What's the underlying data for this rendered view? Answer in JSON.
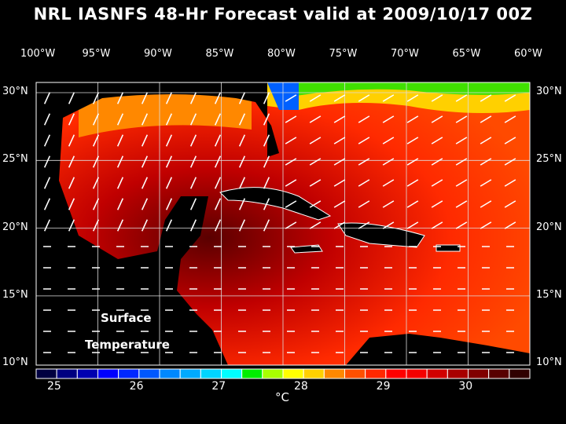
{
  "title": "NRL IASNFS  48-Hr Forecast valid at 2009/10/17 00Z",
  "lon_labels": [
    "100°W",
    "95°W",
    "90°W",
    "85°W",
    "80°W",
    "75°W",
    "70°W",
    "65°W",
    "60°W"
  ],
  "lat_labels": [
    "30°N",
    "25°N",
    "20°N",
    "15°N",
    "10°N"
  ],
  "map_label": {
    "line1": "Surface",
    "line2": "Temperature"
  },
  "colorbar": {
    "ticks": [
      "25",
      "26",
      "27",
      "28",
      "29",
      "30"
    ],
    "unit": "°C",
    "colors": [
      "#000040",
      "#000080",
      "#0000b0",
      "#0000ff",
      "#0028ff",
      "#0058ff",
      "#0088ff",
      "#00aaff",
      "#00d4ff",
      "#00ffff",
      "#00ee00",
      "#a8ff00",
      "#ffff00",
      "#ffd000",
      "#ff8800",
      "#ff5000",
      "#ff2800",
      "#ff0000",
      "#f40000",
      "#d00000",
      "#a80000",
      "#800000",
      "#580000",
      "#300000"
    ]
  }
}
